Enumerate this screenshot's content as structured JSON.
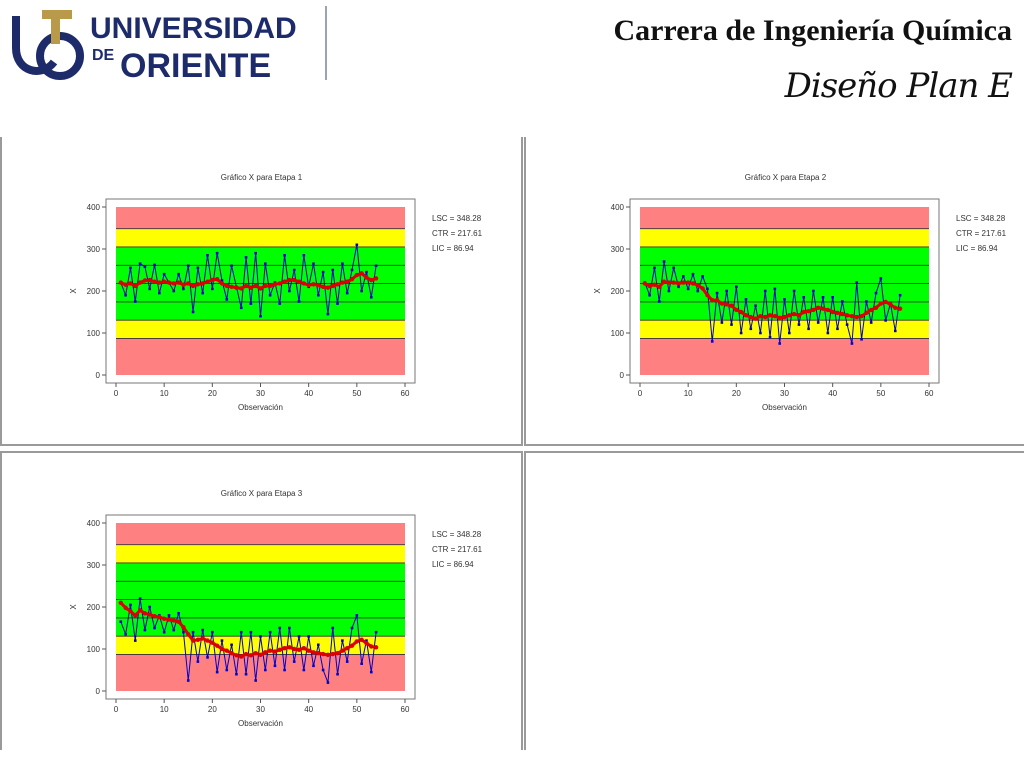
{
  "header": {
    "logo_line1": "UNIVERSIDAD",
    "logo_line2": "DE",
    "logo_line3": "ORIENTE",
    "title": "Carrera de Ingeniería Química",
    "subtitle": "Diseño Plan E"
  },
  "colors": {
    "red_zone": "#ff8080",
    "yellow_zone": "#ffff00",
    "green_zone": "#00ff00",
    "observations": "#0000cc",
    "smoothed": "#dd0000",
    "logo_navy": "#1d2b6b"
  },
  "chart_data": [
    {
      "type": "line",
      "title": "Gráfico X para Etapa 1",
      "xlabel": "Observación",
      "ylabel": "X",
      "xlim": [
        0,
        60
      ],
      "ylim": [
        0,
        400
      ],
      "xticks": [
        0,
        10,
        20,
        30,
        40,
        50,
        60
      ],
      "yticks": [
        0,
        100,
        200,
        300,
        400
      ],
      "control_limits": {
        "LSC": 348.28,
        "CTR": 217.61,
        "LIC": 86.94
      },
      "limit_labels": [
        "LSC = 348.28",
        "CTR = 217.61",
        "LIC = 86.94"
      ],
      "zone_bounds": [
        0,
        86.94,
        130.5,
        304.8,
        348.28,
        400
      ],
      "x": [
        1,
        2,
        3,
        4,
        5,
        6,
        7,
        8,
        9,
        10,
        11,
        12,
        13,
        14,
        15,
        16,
        17,
        18,
        19,
        20,
        21,
        22,
        23,
        24,
        25,
        26,
        27,
        28,
        29,
        30,
        31,
        32,
        33,
        34,
        35,
        36,
        37,
        38,
        39,
        40,
        41,
        42,
        43,
        44,
        45,
        46,
        47,
        48,
        49,
        50,
        51,
        52,
        53,
        54
      ],
      "series": [
        {
          "values": [
            220,
            190,
            255,
            175,
            265,
            258,
            205,
            262,
            195,
            240,
            220,
            200,
            240,
            205,
            260,
            150,
            255,
            195,
            285,
            205,
            290,
            225,
            180,
            260,
            210,
            160,
            280,
            170,
            290,
            140,
            265,
            190,
            220,
            170,
            285,
            200,
            250,
            175,
            285,
            210,
            265,
            190,
            245,
            145,
            250,
            170,
            265,
            195,
            250,
            310,
            200,
            245,
            185,
            260
          ]
        },
        {
          "values": [
            220,
            215,
            218,
            212,
            220,
            225,
            226,
            222,
            220,
            222,
            220,
            218,
            220,
            215,
            218,
            212,
            216,
            218,
            222,
            226,
            228,
            218,
            212,
            210,
            208,
            206,
            212,
            208,
            212,
            206,
            212,
            212,
            216,
            218,
            222,
            226,
            226,
            222,
            218,
            214,
            216,
            214,
            210,
            208,
            212,
            216,
            220,
            222,
            228,
            238,
            242,
            232,
            226,
            230
          ]
        }
      ]
    },
    {
      "type": "line",
      "title": "Gráfico X para Etapa 2",
      "xlabel": "Observación",
      "ylabel": "X",
      "xlim": [
        0,
        60
      ],
      "ylim": [
        0,
        400
      ],
      "xticks": [
        0,
        10,
        20,
        30,
        40,
        50,
        60
      ],
      "yticks": [
        0,
        100,
        200,
        300,
        400
      ],
      "control_limits": {
        "LSC": 348.28,
        "CTR": 217.61,
        "LIC": 86.94
      },
      "limit_labels": [
        "LSC = 348.28",
        "CTR = 217.61",
        "LIC = 86.94"
      ],
      "zone_bounds": [
        0,
        86.94,
        130.5,
        304.8,
        348.28,
        400
      ],
      "x": [
        1,
        2,
        3,
        4,
        5,
        6,
        7,
        8,
        9,
        10,
        11,
        12,
        13,
        14,
        15,
        16,
        17,
        18,
        19,
        20,
        21,
        22,
        23,
        24,
        25,
        26,
        27,
        28,
        29,
        30,
        31,
        32,
        33,
        34,
        35,
        36,
        37,
        38,
        39,
        40,
        41,
        42,
        43,
        44,
        45,
        46,
        47,
        48,
        49,
        50,
        51,
        52,
        53,
        54
      ],
      "series": [
        {
          "values": [
            220,
            190,
            255,
            175,
            270,
            200,
            255,
            210,
            235,
            205,
            240,
            200,
            235,
            205,
            80,
            195,
            125,
            200,
            120,
            210,
            100,
            180,
            110,
            165,
            100,
            200,
            90,
            205,
            75,
            180,
            100,
            200,
            120,
            185,
            110,
            200,
            125,
            185,
            100,
            185,
            110,
            175,
            120,
            75,
            220,
            85,
            175,
            125,
            195,
            230,
            130,
            170,
            105,
            190
          ]
        },
        {
          "values": [
            218,
            212,
            215,
            210,
            222,
            220,
            220,
            218,
            220,
            220,
            218,
            214,
            206,
            190,
            178,
            178,
            170,
            168,
            165,
            155,
            150,
            142,
            138,
            134,
            140,
            138,
            142,
            140,
            136,
            138,
            142,
            145,
            142,
            150,
            152,
            155,
            160,
            158,
            155,
            150,
            148,
            145,
            142,
            140,
            138,
            140,
            148,
            155,
            160,
            170,
            174,
            168,
            160,
            158
          ]
        }
      ]
    },
    {
      "type": "line",
      "title": "Gráfico X para Etapa 3",
      "xlabel": "Observación",
      "ylabel": "X",
      "xlim": [
        0,
        60
      ],
      "ylim": [
        0,
        400
      ],
      "xticks": [
        0,
        10,
        20,
        30,
        40,
        50,
        60
      ],
      "yticks": [
        0,
        100,
        200,
        300,
        400
      ],
      "control_limits": {
        "LSC": 348.28,
        "CTR": 217.61,
        "LIC": 86.94
      },
      "limit_labels": [
        "LSC = 348.28",
        "CTR = 217.61",
        "LIC = 86.94"
      ],
      "zone_bounds": [
        0,
        86.94,
        130.5,
        304.8,
        348.28,
        400
      ],
      "x": [
        1,
        2,
        3,
        4,
        5,
        6,
        7,
        8,
        9,
        10,
        11,
        12,
        13,
        14,
        15,
        16,
        17,
        18,
        19,
        20,
        21,
        22,
        23,
        24,
        25,
        26,
        27,
        28,
        29,
        30,
        31,
        32,
        33,
        34,
        35,
        36,
        37,
        38,
        39,
        40,
        41,
        42,
        43,
        44,
        45,
        46,
        47,
        48,
        49,
        50,
        51,
        52,
        53,
        54
      ],
      "series": [
        {
          "values": [
            165,
            135,
            205,
            120,
            220,
            145,
            200,
            150,
            180,
            140,
            180,
            145,
            185,
            140,
            25,
            140,
            70,
            145,
            80,
            140,
            45,
            120,
            50,
            110,
            40,
            140,
            40,
            140,
            25,
            130,
            50,
            140,
            60,
            150,
            50,
            150,
            70,
            130,
            50,
            130,
            60,
            110,
            50,
            20,
            150,
            40,
            120,
            70,
            150,
            180,
            65,
            120,
            45,
            140
          ]
        },
        {
          "values": [
            210,
            198,
            190,
            180,
            192,
            185,
            182,
            178,
            176,
            172,
            170,
            168,
            165,
            152,
            135,
            120,
            122,
            125,
            120,
            115,
            108,
            100,
            96,
            90,
            85,
            82,
            88,
            85,
            90,
            86,
            92,
            96,
            94,
            98,
            102,
            104,
            100,
            98,
            102,
            96,
            92,
            90,
            88,
            86,
            88,
            90,
            96,
            102,
            108,
            118,
            122,
            114,
            106,
            104
          ]
        }
      ]
    }
  ]
}
